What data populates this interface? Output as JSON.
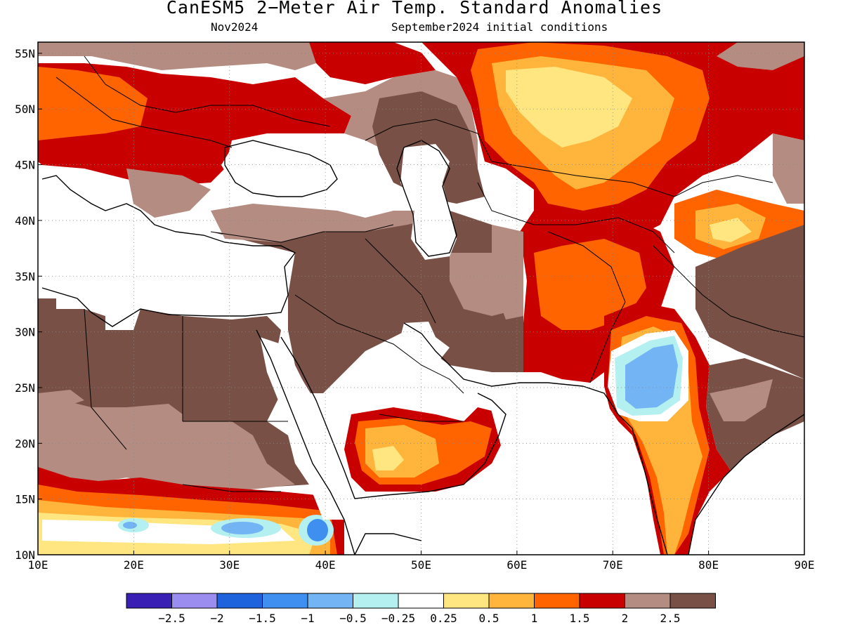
{
  "header": {
    "title": "CanESM5 2−Meter Air Temp. Standard Anomalies",
    "valid_month": "Nov2024",
    "initial_conditions": "September2024 initial conditions"
  },
  "map": {
    "region": {
      "lon_min": 10,
      "lon_max": 90,
      "lat_min": 10,
      "lat_max": 56
    },
    "lat_ticks": [
      {
        "value": 10,
        "label": "10N"
      },
      {
        "value": 15,
        "label": "15N"
      },
      {
        "value": 20,
        "label": "20N"
      },
      {
        "value": 25,
        "label": "25N"
      },
      {
        "value": 30,
        "label": "30N"
      },
      {
        "value": 35,
        "label": "35N"
      },
      {
        "value": 40,
        "label": "40N"
      },
      {
        "value": 45,
        "label": "45N"
      },
      {
        "value": 50,
        "label": "50N"
      },
      {
        "value": 55,
        "label": "55N"
      }
    ],
    "lon_ticks": [
      {
        "value": 10,
        "label": "10E"
      },
      {
        "value": 20,
        "label": "20E"
      },
      {
        "value": 30,
        "label": "30E"
      },
      {
        "value": 40,
        "label": "40E"
      },
      {
        "value": 50,
        "label": "50E"
      },
      {
        "value": 60,
        "label": "60E"
      },
      {
        "value": 70,
        "label": "70E"
      },
      {
        "value": 80,
        "label": "80E"
      },
      {
        "value": 90,
        "label": "90E"
      }
    ],
    "gridlines": "dotted"
  },
  "colorbar": {
    "colors": [
      "#3a1fb4",
      "#9b8cf0",
      "#1e63dc",
      "#3f8ff0",
      "#73b4f5",
      "#b4f0f0",
      "#ffffff",
      "#ffe680",
      "#ffb43c",
      "#ff6400",
      "#c80000",
      "#b48c82",
      "#785046"
    ],
    "labels": [
      "−2.5",
      "−2",
      "−1.5",
      "−1",
      "−0.5",
      "−0.25",
      "0.25",
      "0.5",
      "1",
      "1.5",
      "2",
      "2.5"
    ]
  }
}
